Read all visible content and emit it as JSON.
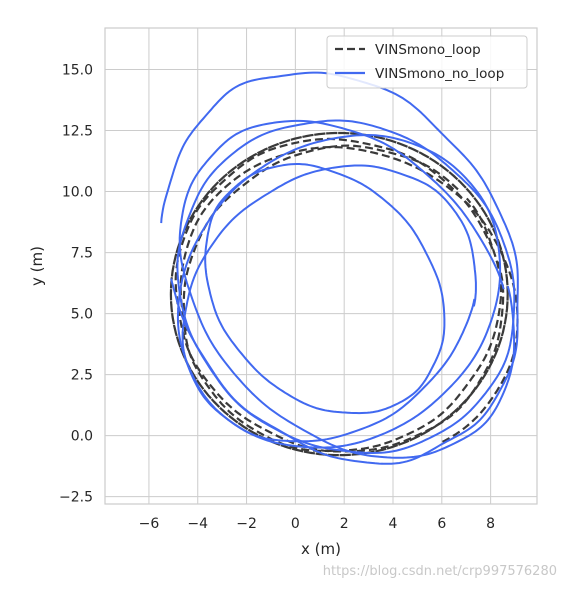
{
  "chart_data": {
    "type": "line",
    "title": "",
    "xlabel": "x (m)",
    "ylabel": "y (m)",
    "xlim": [
      -7.8,
      9.9
    ],
    "ylim": [
      -2.8,
      16.7
    ],
    "xticks": [
      -6,
      -4,
      -2,
      0,
      2,
      4,
      6,
      8
    ],
    "yticks": [
      -2.5,
      0.0,
      2.5,
      5.0,
      7.5,
      10.0,
      12.5,
      15.0
    ],
    "xtick_labels": [
      "−6",
      "−4",
      "−2",
      "0",
      "2",
      "4",
      "6",
      "8"
    ],
    "ytick_labels": [
      "−2.5",
      "0.0",
      "2.5",
      "5.0",
      "7.5",
      "10.0",
      "12.5",
      "15.0"
    ],
    "grid": true,
    "legend_position": "top-right",
    "series": [
      {
        "name": "VINSmono_loop",
        "color": "#3a3a3a",
        "style": "dashed",
        "loops": [
          {
            "cx": 1.8,
            "cy": 5.8,
            "rx": 6.9,
            "ry": 6.6,
            "k0": 0.0,
            "k1": 12.57,
            "tilt": 0.0,
            "jit": 0.0,
            "drift": [
              0.0,
              0.0
            ]
          },
          {
            "cx": 1.8,
            "cy": 5.75,
            "rx": 6.7,
            "ry": 6.4,
            "k0": 0.3,
            "k1": 6.5,
            "tilt": 0.05,
            "jit": 0.1,
            "drift": [
              0.0,
              0.0
            ]
          },
          {
            "cx": 1.9,
            "cy": 5.6,
            "rx": 6.5,
            "ry": 6.25,
            "k0": 0.8,
            "k1": 7.0,
            "tilt": -0.05,
            "jit": 0.1,
            "drift": [
              0.0,
              0.0
            ]
          },
          {
            "cx": 2.2,
            "cy": 5.4,
            "rx": 6.9,
            "ry": 6.4,
            "k0": 5.2,
            "k1": 9.6,
            "tilt": 0.1,
            "jit": 0.05,
            "drift": [
              0.0,
              0.0
            ]
          }
        ]
      },
      {
        "name": "VINSmono_no_loop",
        "color": "#4169f0",
        "style": "solid",
        "loops": [
          {
            "cx": 1.9,
            "cy": 6.9,
            "rx": 7.3,
            "ry": 8.0,
            "k0": 3.2,
            "k1": 9.2,
            "tilt": 0.2,
            "jit": 0.2,
            "drift": [
              0.0,
              0.0
            ]
          },
          {
            "cx": 2.0,
            "cy": 6.0,
            "rx": 6.8,
            "ry": 6.9,
            "k0": 0.0,
            "k1": 6.3,
            "tilt": 0.3,
            "jit": 0.1,
            "drift": [
              0.2,
              0.0
            ]
          },
          {
            "cx": 1.4,
            "cy": 5.3,
            "rx": 6.0,
            "ry": 5.7,
            "k0": 0.0,
            "k1": 6.3,
            "tilt": -0.2,
            "jit": 0.1,
            "drift": [
              0.0,
              0.2
            ]
          },
          {
            "cx": 1.2,
            "cy": 6.0,
            "rx": 4.9,
            "ry": 5.1,
            "k0": 1.0,
            "k1": 7.3,
            "tilt": 0.25,
            "jit": 0.1,
            "drift": [
              0.0,
              0.0
            ]
          },
          {
            "cx": 1.8,
            "cy": 5.9,
            "rx": 6.6,
            "ry": 6.4,
            "k0": 0.5,
            "k1": 6.8,
            "tilt": -0.15,
            "jit": 0.05,
            "drift": [
              0.0,
              0.0
            ]
          },
          {
            "cx": 2.1,
            "cy": 6.1,
            "rx": 6.9,
            "ry": 6.8,
            "k0": 2.1,
            "k1": 8.4,
            "tilt": 0.1,
            "jit": 0.1,
            "drift": [
              0.0,
              0.0
            ]
          }
        ]
      }
    ]
  },
  "watermark": "https://blog.csdn.net/crp997576280"
}
